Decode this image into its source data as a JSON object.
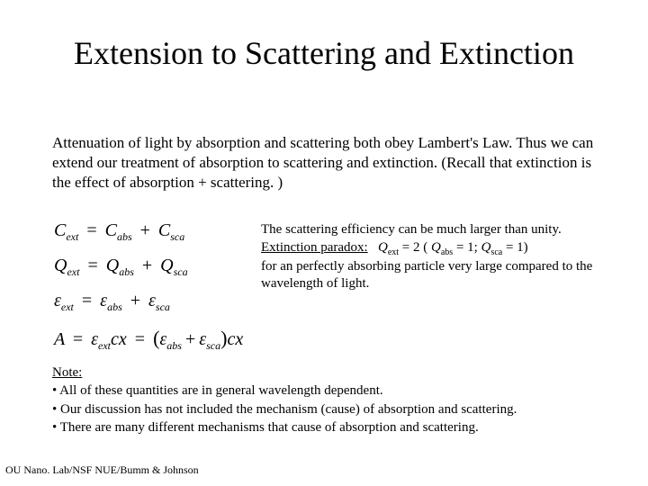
{
  "title": "Extension to Scattering and Extinction",
  "intro": "Attenuation of light by absorption and scattering both obey Lambert's Law.  Thus we can extend our treatment of absorption to scattering and extinction.  (Recall that extinction is the effect of absorption + scattering. )",
  "eq": {
    "c_ext": "C",
    "c_ext_sub": "ext",
    "c_abs": "C",
    "c_abs_sub": "abs",
    "c_sca": "C",
    "c_sca_sub": "sca",
    "q_ext": "Q",
    "q_ext_sub": "ext",
    "q_abs": "Q",
    "q_abs_sub": "abs",
    "q_sca": "Q",
    "q_sca_sub": "sca",
    "e_ext": "ε",
    "e_ext_sub": "ext",
    "e_abs": "ε",
    "e_abs_sub": "abs",
    "e_sca": "ε",
    "e_sca_sub": "sca",
    "A": "A",
    "cx1": "cx",
    "cx2": "cx",
    "lpar": "(",
    "rpar": ")",
    "eq": "=",
    "plus": "+"
  },
  "paradox": {
    "line1": "The scattering efficiency can be much larger than unity.",
    "label": "Extinction paradox:",
    "q_ext": "Q",
    "q_ext_sub": "ext",
    "v_ext": " = 2 (",
    "q_abs": "Q",
    "q_abs_sub": "abs",
    "v_abs": " = 1; ",
    "q_sca": "Q",
    "q_sca_sub": "sca",
    "v_sca": " = 1)",
    "line3": "for an perfectly absorbing particle very large compared to the wavelength of light."
  },
  "note": {
    "heading": "Note:",
    "b1": "• All of these quantities are in general wavelength dependent.",
    "b2": "• Our discussion has not included the mechanism (cause) of absorption and scattering.",
    "b3": "• There are many different mechanisms that cause of absorption and scattering."
  },
  "footer": "OU Nano. Lab/NSF NUE/Bumm & Johnson"
}
